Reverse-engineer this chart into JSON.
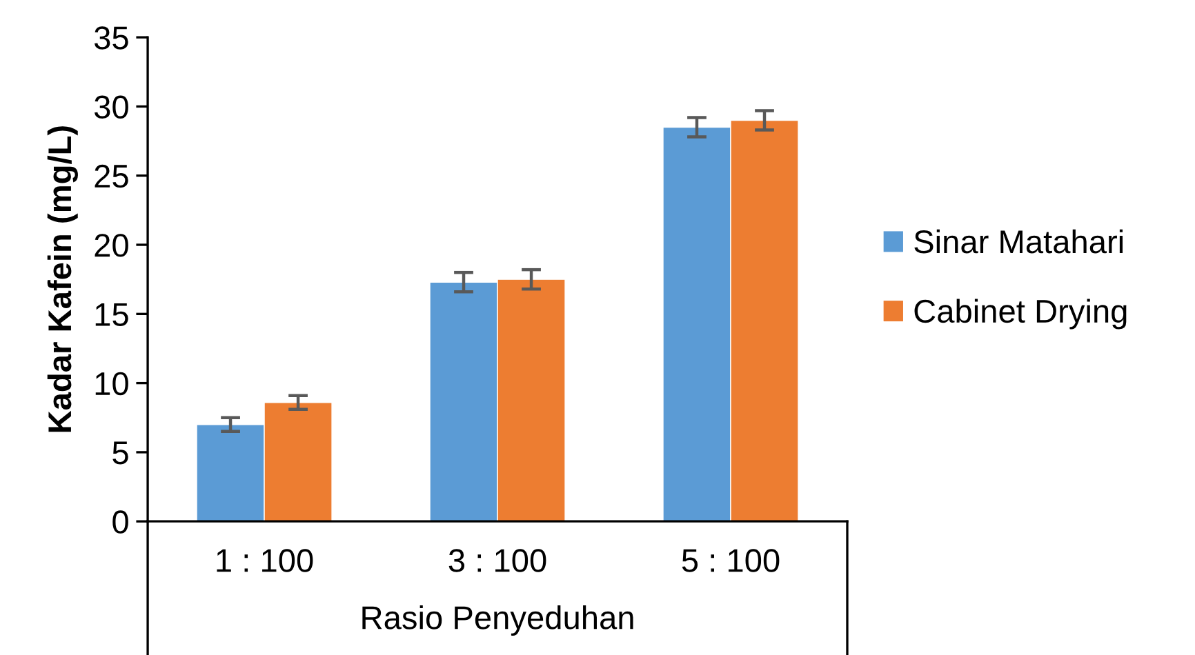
{
  "chart_data": {
    "type": "bar",
    "xlabel": "Rasio Penyeduhan",
    "ylabel": "Kadar Kafein (mg/L)",
    "categories": [
      "1 : 100",
      "3 : 100",
      "5 : 100"
    ],
    "series": [
      {
        "name": "Sinar Matahari",
        "color": "#5b9bd5",
        "values": [
          7.0,
          17.3,
          28.5
        ],
        "errors": [
          0.5,
          0.7,
          0.7
        ]
      },
      {
        "name": "Cabinet Drying",
        "color": "#ed7d31",
        "values": [
          8.6,
          17.5,
          29.0
        ],
        "errors": [
          0.5,
          0.7,
          0.7
        ]
      }
    ],
    "ylim": [
      0,
      35
    ],
    "yticks": [
      0,
      5,
      10,
      15,
      20,
      25,
      30,
      35
    ],
    "grid": false,
    "legend": "right"
  }
}
